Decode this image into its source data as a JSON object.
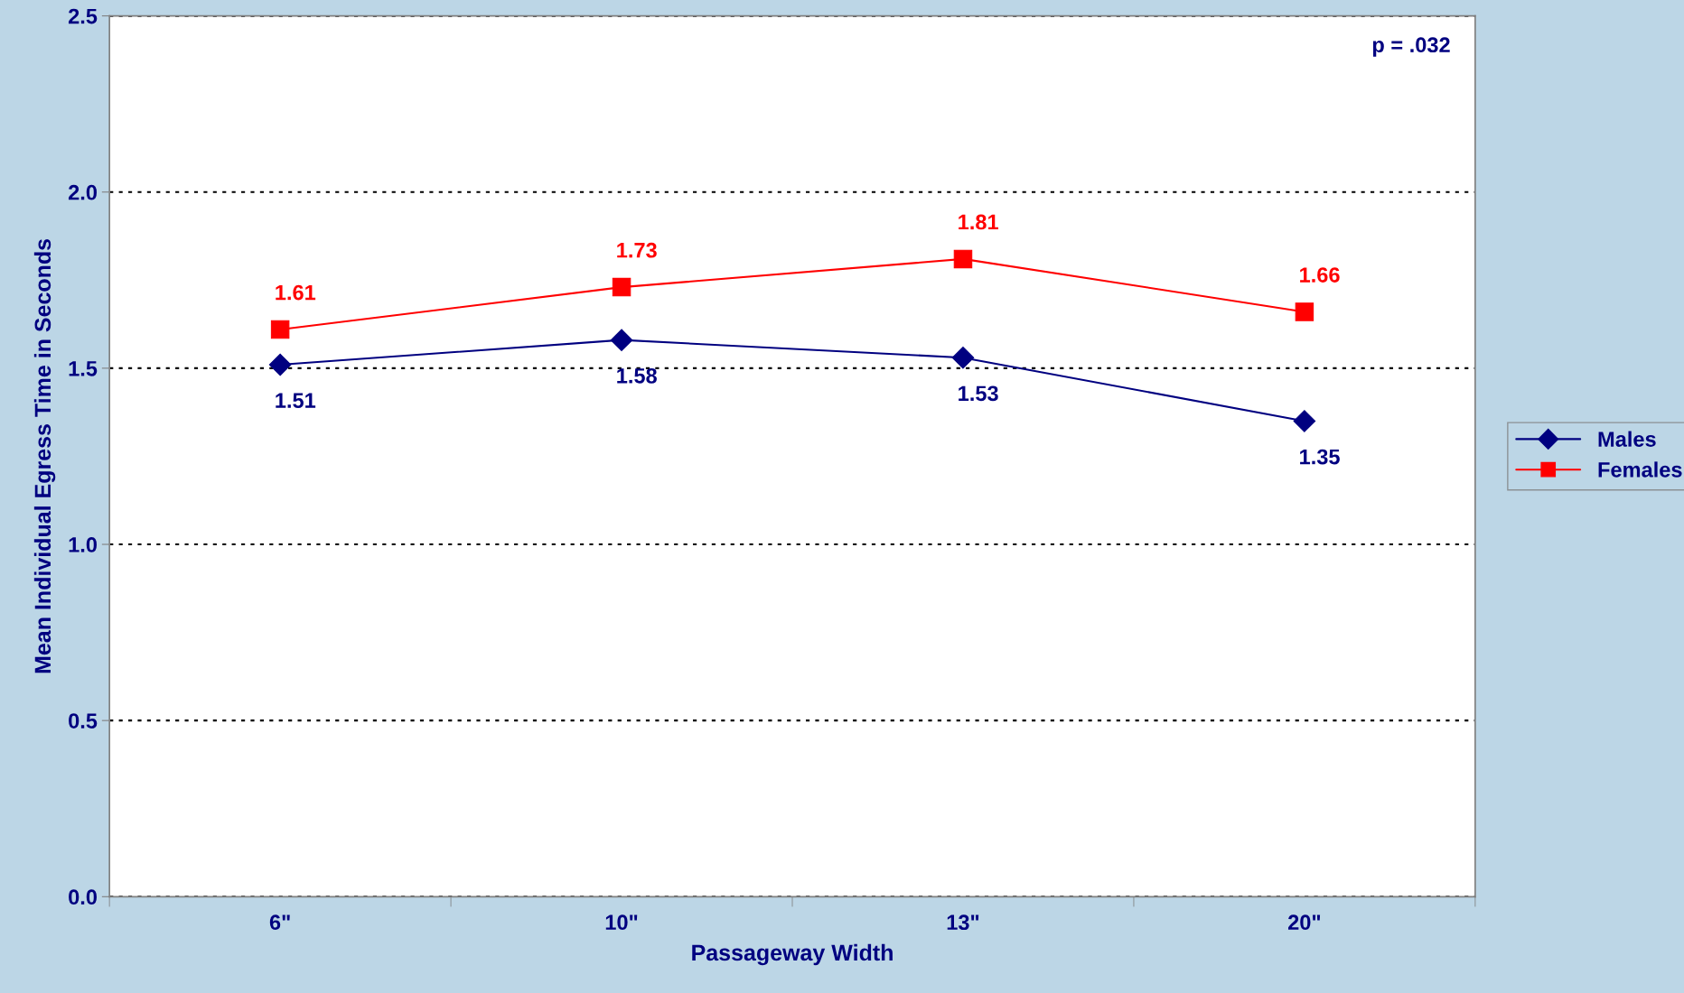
{
  "chart_data": {
    "type": "line",
    "xlabel": "Passageway Width",
    "ylabel": "Mean Individual Egress Time in Seconds",
    "categories": [
      "6\"",
      "10\"",
      "13\"",
      "20\""
    ],
    "series": [
      {
        "name": "Males",
        "color": "#000080",
        "marker": "diamond",
        "values": [
          1.51,
          1.58,
          1.53,
          1.35
        ]
      },
      {
        "name": "Females",
        "color": "#ff0000",
        "marker": "square",
        "values": [
          1.61,
          1.73,
          1.81,
          1.66
        ]
      }
    ],
    "ylim": [
      0,
      2.5
    ],
    "yticks": [
      {
        "value": 0,
        "label": "0.0"
      },
      {
        "value": 0.5,
        "label": "0.5"
      },
      {
        "value": 1,
        "label": "1.0"
      },
      {
        "value": 1.5,
        "label": "1.5"
      },
      {
        "value": 2,
        "label": "2.0"
      },
      {
        "value": 2.5,
        "label": "2.5"
      }
    ],
    "grid": "y",
    "legend": "right",
    "data_labels": true,
    "line_style": "solid",
    "annotations": [
      "p = .032"
    ]
  }
}
